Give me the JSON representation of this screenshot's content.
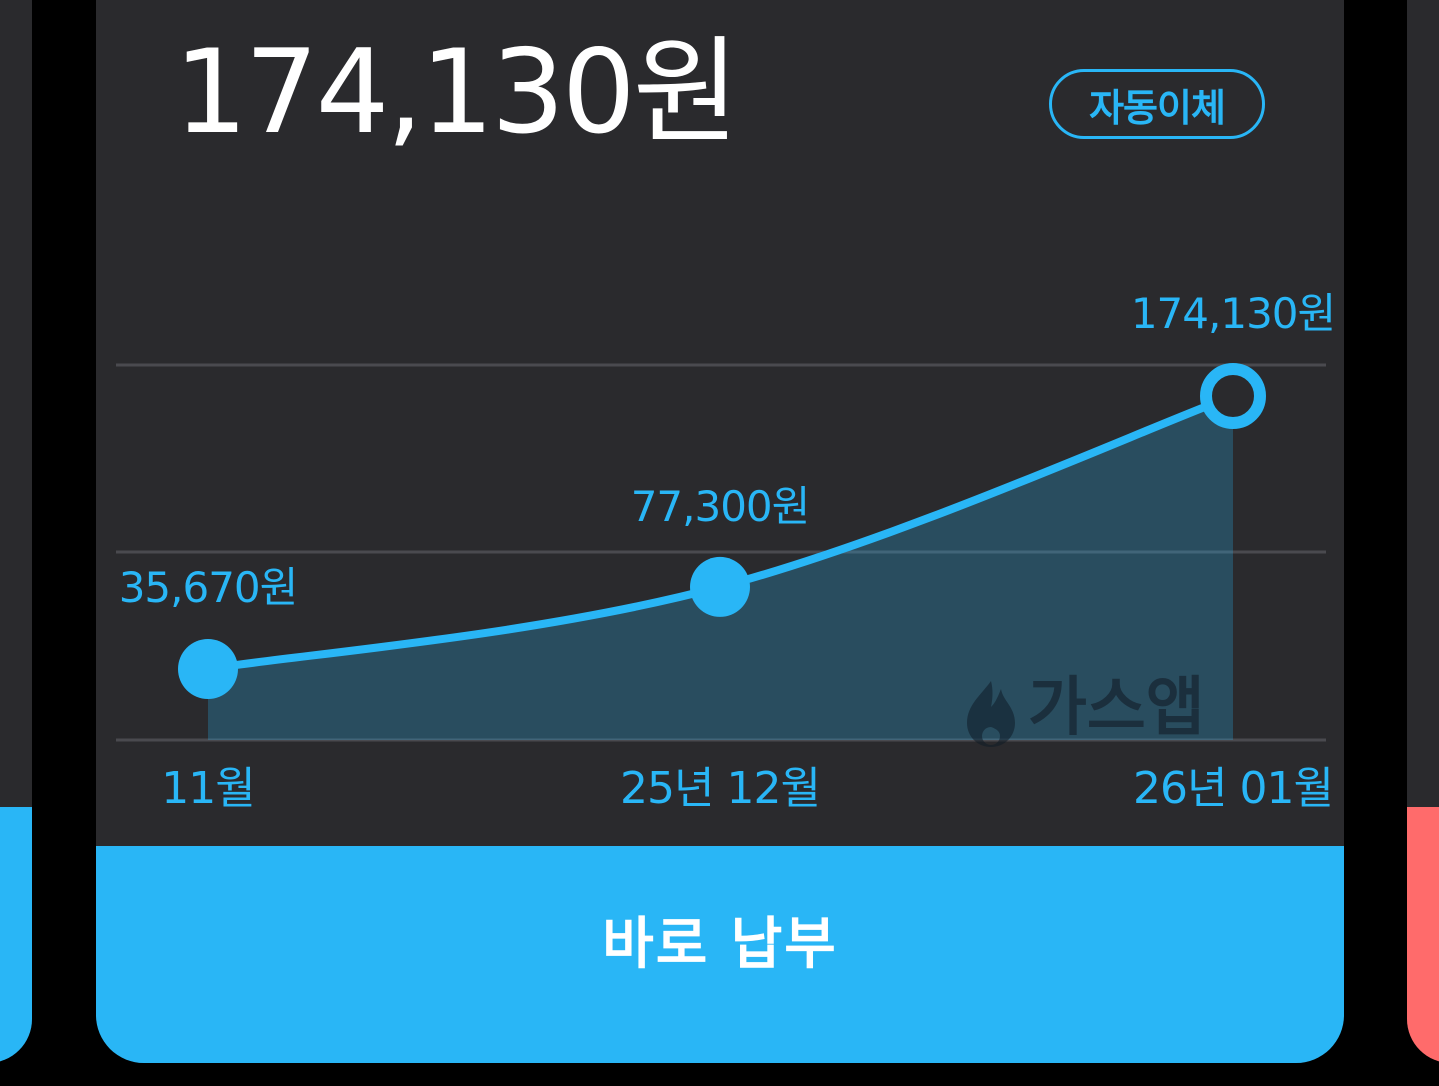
{
  "bill": {
    "amount": "174,130원",
    "autopay_label": "자동이체",
    "pay_button_label": "바로 납부",
    "watermark": "가스앱"
  },
  "colors": {
    "accent": "#29b6f6",
    "card_background": "#2a2a2d",
    "page_background": "#000000",
    "right_card_accent": "#ff6b6b",
    "watermark": "#1b2f3d"
  },
  "chart_data": {
    "type": "area",
    "categories": [
      "11월",
      "25년 12월",
      "26년 01월"
    ],
    "values": [
      35670,
      77300,
      174130
    ],
    "data_labels": [
      "35,670원",
      "77,300원",
      "174,130원"
    ],
    "highlight_index": 2,
    "title": "",
    "xlabel": "",
    "ylabel": "",
    "grid": true,
    "legend": "none"
  },
  "icons": {
    "watermark_icon": "flame-icon"
  }
}
